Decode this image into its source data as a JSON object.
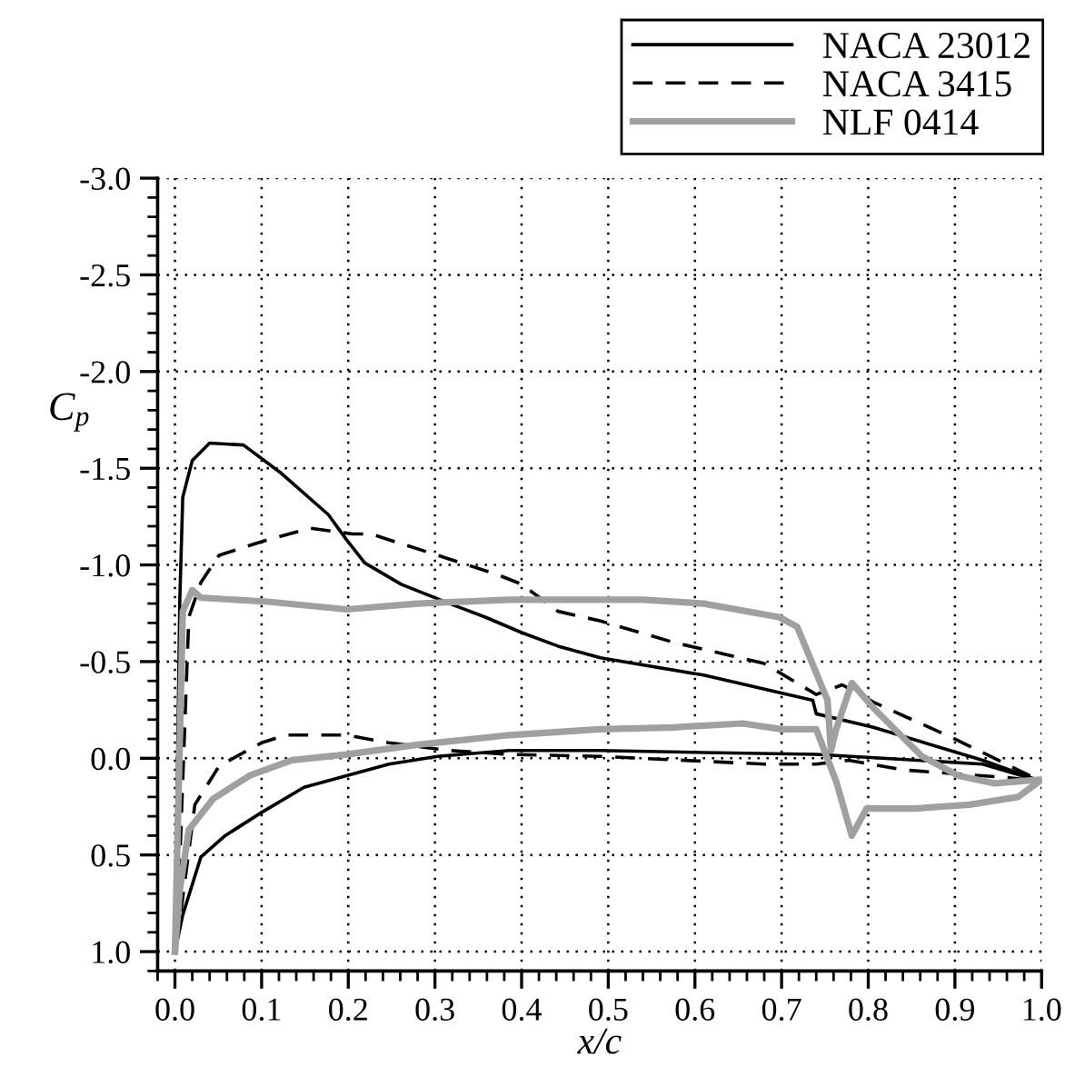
{
  "chart_data": {
    "type": "line",
    "xlabel": "x/c",
    "ylabel": "C$_{p}$",
    "xlim": [
      -0.02,
      1.0
    ],
    "ylim": [
      1.1,
      -3.0
    ],
    "xticks": [
      {
        "value": 0,
        "label": "0.0"
      },
      0.1,
      0.2,
      0.3,
      0.4,
      0.5,
      0.6,
      0.7,
      0.8,
      0.9,
      {
        "value": 1,
        "label": "1.0"
      }
    ],
    "yticks": [
      {
        "value": -3,
        "label": "-3.0"
      },
      -2.5,
      {
        "value": -2,
        "label": "-2.0"
      },
      -1.5,
      {
        "value": -1,
        "label": "-1.0"
      },
      -0.5,
      {
        "value": 0,
        "label": "0.0"
      },
      0.5,
      {
        "value": 1,
        "label": "1.0"
      }
    ],
    "grid": true,
    "legend": "top right",
    "series": [
      {
        "name": "NACA 23012",
        "color": "#000000",
        "line_style": "solid",
        "x": [
          0.0,
          0.0056,
          0.009,
          0.02,
          0.04,
          0.079,
          0.121,
          0.177,
          0.198,
          0.219,
          0.261,
          0.317,
          0.358,
          0.4,
          0.442,
          0.491,
          0.61,
          0.736,
          0.74,
          0.806,
          0.932,
          1.0
        ],
        "values": [
          1.0,
          -0.82,
          -1.35,
          -1.54,
          -1.63,
          -1.62,
          -1.48,
          -1.26,
          -1.13,
          -1.01,
          -0.9,
          -0.8,
          -0.73,
          -0.65,
          -0.58,
          -0.52,
          -0.43,
          -0.3,
          -0.23,
          -0.16,
          0.01,
          0.12
        ]
      },
      {
        "color": "#000000",
        "line_style": "solid",
        "x": [
          0.0,
          0.009,
          0.03,
          0.058,
          0.1,
          0.149,
          0.198,
          0.247,
          0.303,
          0.386,
          0.49,
          0.61,
          0.74,
          0.932,
          1.0
        ],
        "values": [
          1.0,
          0.81,
          0.51,
          0.4,
          0.28,
          0.15,
          0.09,
          0.03,
          -0.01,
          -0.04,
          -0.04,
          -0.03,
          -0.02,
          0.03,
          0.12
        ]
      },
      {
        "name": "NACA 3415",
        "color": "#000000",
        "line_style": "dashed",
        "x": [
          0.002,
          0.016,
          0.03,
          0.051,
          0.107,
          0.156,
          0.205,
          0.226,
          0.303,
          0.372,
          0.4,
          0.442,
          0.491,
          0.575,
          0.68,
          0.74,
          0.77,
          0.806,
          0.9,
          1.0
        ],
        "values": [
          0.96,
          -0.73,
          -0.91,
          -1.05,
          -1.13,
          -1.19,
          -1.16,
          -1.16,
          -1.05,
          -0.95,
          -0.9,
          -0.76,
          -0.71,
          -0.6,
          -0.49,
          -0.33,
          -0.38,
          -0.29,
          -0.1,
          0.12
        ]
      },
      {
        "color": "#000000",
        "line_style": "dashed",
        "x": [
          0.002,
          0.023,
          0.051,
          0.1,
          0.128,
          0.198,
          0.247,
          0.317,
          0.386,
          0.49,
          0.68,
          0.74,
          0.777,
          0.84,
          0.96,
          1.0
        ],
        "values": [
          0.96,
          0.24,
          0.04,
          -0.08,
          -0.12,
          -0.12,
          -0.08,
          -0.04,
          -0.02,
          -0.01,
          0.03,
          0.03,
          0.01,
          0.06,
          0.1,
          0.12
        ]
      },
      {
        "name": "NLF 0414",
        "color": "#a0a0a0",
        "line_style": "solid",
        "x": [
          0.0,
          0.009,
          0.02,
          0.03,
          0.107,
          0.198,
          0.28,
          0.386,
          0.49,
          0.54,
          0.61,
          0.697,
          0.718,
          0.753,
          0.757,
          0.763,
          0.781,
          0.806,
          0.862,
          0.904,
          0.946,
          1.0
        ],
        "values": [
          1.0,
          -0.76,
          -0.87,
          -0.83,
          -0.81,
          -0.77,
          -0.8,
          -0.82,
          -0.82,
          -0.82,
          -0.8,
          -0.73,
          -0.68,
          -0.3,
          -0.04,
          -0.15,
          -0.39,
          -0.26,
          -0.01,
          0.09,
          0.13,
          0.11
        ]
      },
      {
        "color": "#a0a0a0",
        "line_style": "solid",
        "x": [
          0.0,
          0.0056,
          0.016,
          0.044,
          0.086,
          0.135,
          0.198,
          0.28,
          0.386,
          0.49,
          0.575,
          0.655,
          0.7,
          0.74,
          0.763,
          0.781,
          0.798,
          0.854,
          0.917,
          0.973,
          1.0
        ],
        "values": [
          1.0,
          0.68,
          0.37,
          0.21,
          0.09,
          0.01,
          -0.02,
          -0.07,
          -0.12,
          -0.15,
          -0.16,
          -0.18,
          -0.15,
          -0.15,
          0.12,
          0.4,
          0.26,
          0.26,
          0.24,
          0.2,
          0.11
        ]
      }
    ]
  }
}
